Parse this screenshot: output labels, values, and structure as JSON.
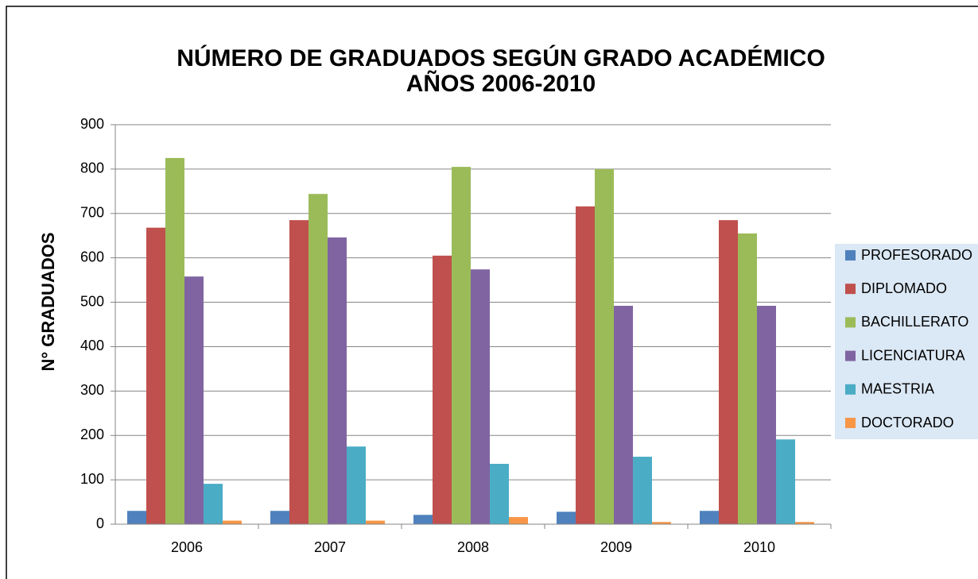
{
  "chart_data": {
    "type": "bar",
    "title": "NÚMERO DE GRADUADOS SEGÚN GRADO ACADÉMICO",
    "subtitle": "AÑOS 2006-2010",
    "y_label": "N° GRADUADOS",
    "categories": [
      "2006",
      "2007",
      "2008",
      "2009",
      "2010"
    ],
    "series": [
      {
        "name": "PROFESORADO",
        "color": "#4f81bd",
        "values": [
          30,
          30,
          21,
          28,
          30
        ]
      },
      {
        "name": "DIPLOMADO",
        "color": "#c0504d",
        "values": [
          668,
          685,
          605,
          716,
          685
        ]
      },
      {
        "name": "BACHILLERATO",
        "color": "#9bbb59",
        "values": [
          825,
          744,
          805,
          800,
          655
        ]
      },
      {
        "name": "LICENCIATURA",
        "color": "#8064a2",
        "values": [
          558,
          646,
          574,
          492,
          492
        ]
      },
      {
        "name": "MAESTRIA",
        "color": "#4bacc6",
        "values": [
          91,
          175,
          136,
          152,
          191
        ]
      },
      {
        "name": "DOCTORADO",
        "color": "#f79646",
        "values": [
          8,
          8,
          16,
          5,
          5
        ]
      }
    ],
    "ylim": [
      0,
      900
    ],
    "yticks": [
      0,
      100,
      200,
      300,
      400,
      500,
      600,
      700,
      800,
      900
    ],
    "grid": true,
    "legend": "right"
  }
}
